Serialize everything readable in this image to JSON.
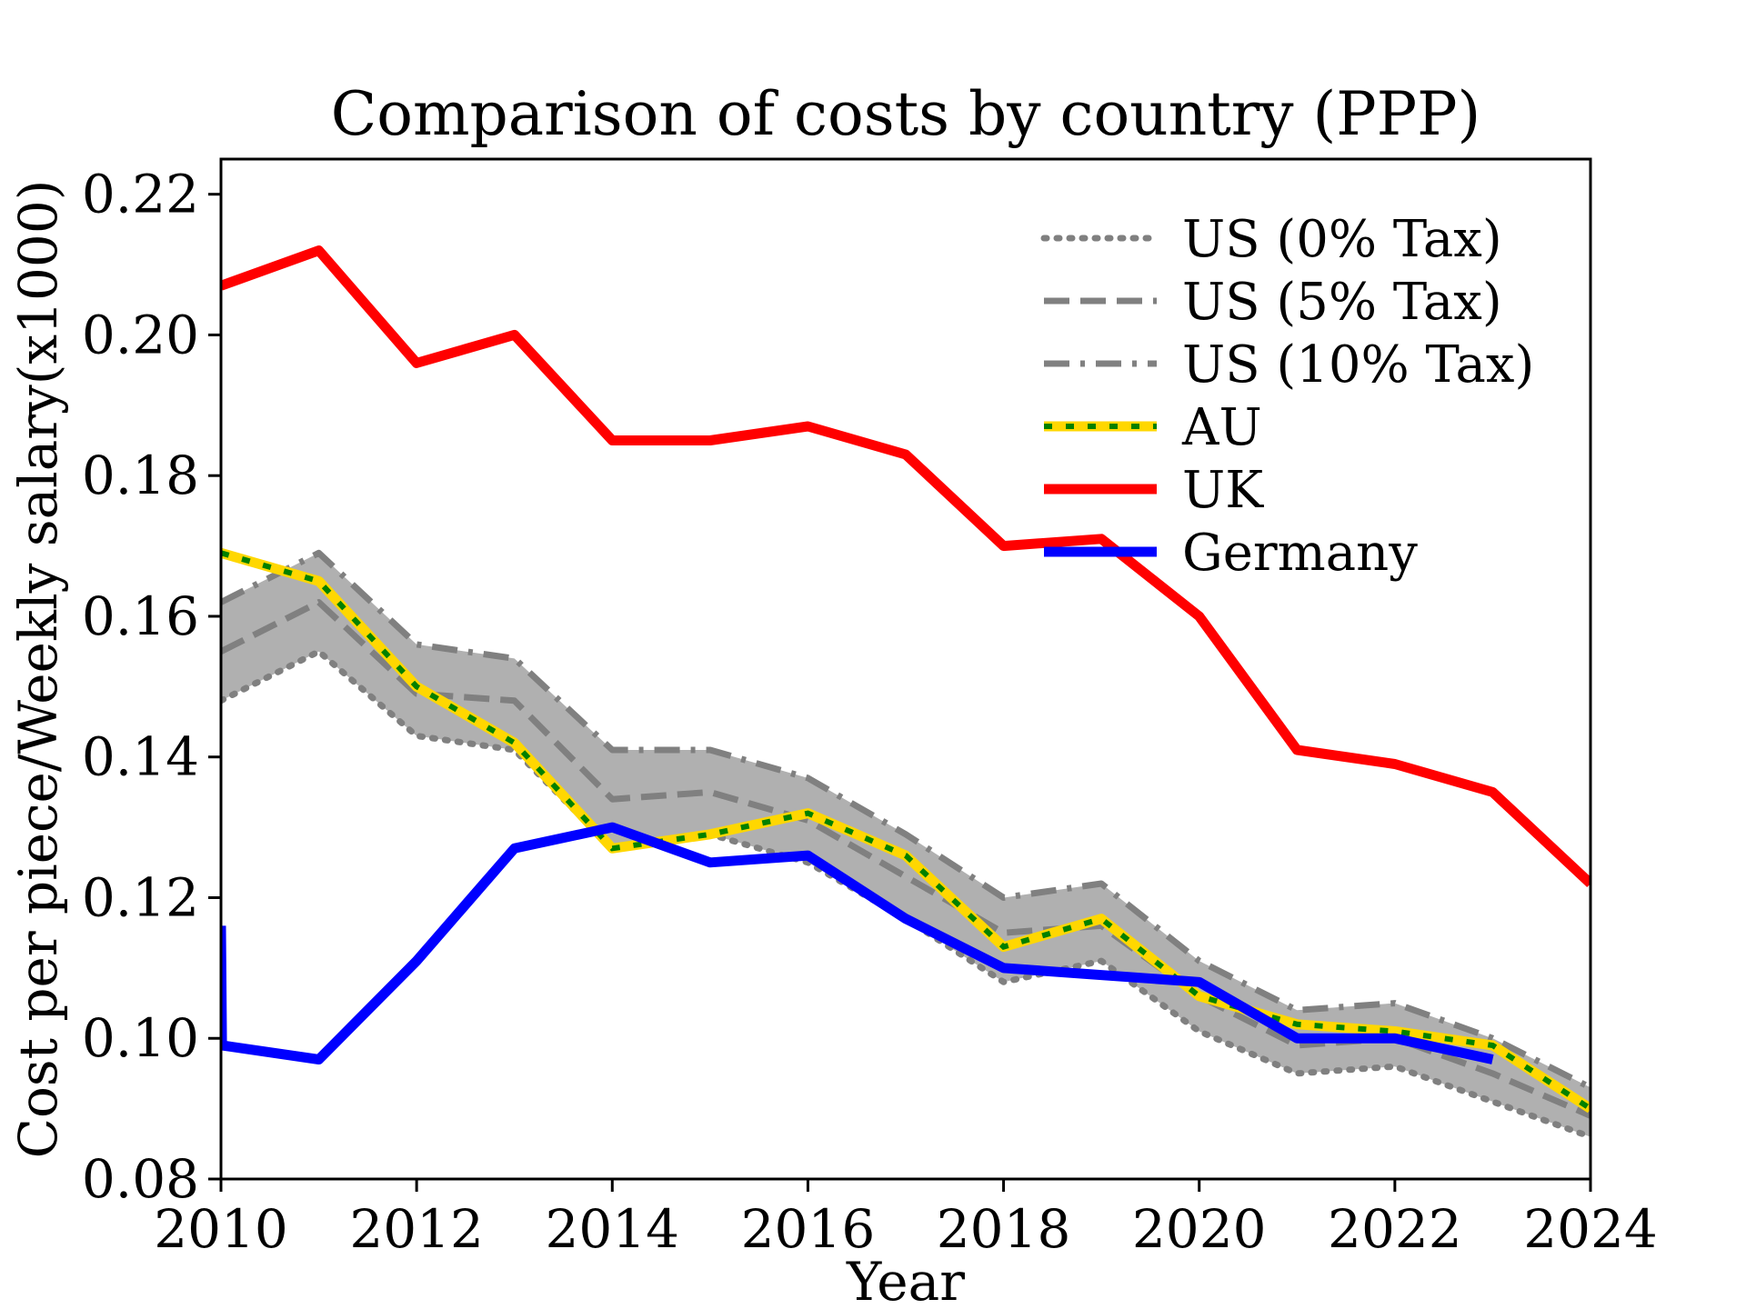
{
  "chart_data": {
    "type": "line",
    "title": "Comparison of costs by country (PPP)",
    "xlabel": "Year",
    "ylabel": "Cost per piece/Weekly salary(x1000)",
    "xlim": [
      2010,
      2024
    ],
    "ylim": [
      0.08,
      0.225
    ],
    "xticks": [
      2010,
      2012,
      2014,
      2016,
      2018,
      2020,
      2022,
      2024
    ],
    "xtick_labels": [
      "2010",
      "2012",
      "2014",
      "2016",
      "2018",
      "2020",
      "2022",
      "2024"
    ],
    "yticks": [
      0.08,
      0.1,
      0.12,
      0.14,
      0.16,
      0.18,
      0.2,
      0.22
    ],
    "ytick_labels": [
      "0.08",
      "0.10",
      "0.12",
      "0.14",
      "0.16",
      "0.18",
      "0.20",
      "0.22"
    ],
    "grid": false,
    "legend_position": "top-right",
    "x": [
      2010,
      2011,
      2012,
      2013,
      2014,
      2015,
      2016,
      2017,
      2018,
      2019,
      2020,
      2021,
      2022,
      2023,
      2024
    ],
    "band": {
      "between": [
        "US (0% Tax)",
        "US (10% Tax)"
      ],
      "color": "#b0b0b0"
    },
    "series": [
      {
        "name": "US (0% Tax)",
        "style": "dotted",
        "color": "#808080",
        "x": [
          2010,
          2011,
          2012,
          2013,
          2014,
          2015,
          2016,
          2017,
          2018,
          2019,
          2020,
          2021,
          2022,
          2023,
          2024
        ],
        "values": [
          0.148,
          0.155,
          0.143,
          0.141,
          0.127,
          0.129,
          0.125,
          0.117,
          0.108,
          0.111,
          0.101,
          0.095,
          0.096,
          0.091,
          0.086
        ]
      },
      {
        "name": "US (5% Tax)",
        "style": "dashed",
        "color": "#808080",
        "x": [
          2010,
          2011,
          2012,
          2013,
          2014,
          2015,
          2016,
          2017,
          2018,
          2019,
          2020,
          2021,
          2022,
          2023,
          2024
        ],
        "values": [
          0.155,
          0.162,
          0.149,
          0.148,
          0.134,
          0.135,
          0.131,
          0.123,
          0.115,
          0.116,
          0.106,
          0.099,
          0.1,
          0.095,
          0.089
        ]
      },
      {
        "name": "US (10% Tax)",
        "style": "dashdot",
        "color": "#808080",
        "x": [
          2010,
          2011,
          2012,
          2013,
          2014,
          2015,
          2016,
          2017,
          2018,
          2019,
          2020,
          2021,
          2022,
          2023,
          2024
        ],
        "values": [
          0.162,
          0.169,
          0.156,
          0.154,
          0.141,
          0.141,
          0.137,
          0.129,
          0.12,
          0.122,
          0.111,
          0.104,
          0.105,
          0.1,
          0.093
        ]
      },
      {
        "name": "AU",
        "style": "solid-dashed",
        "color": "#ffd700",
        "color2": "#008000",
        "x": [
          2010,
          2011,
          2012,
          2013,
          2014,
          2015,
          2016,
          2017,
          2018,
          2019,
          2020,
          2021,
          2022,
          2023,
          2024
        ],
        "values": [
          0.169,
          0.165,
          0.15,
          0.142,
          0.127,
          0.129,
          0.132,
          0.126,
          0.113,
          0.117,
          0.106,
          0.102,
          0.101,
          0.099,
          0.09
        ]
      },
      {
        "name": "UK",
        "style": "solid",
        "color": "#ff0000",
        "x": [
          2010,
          2011,
          2012,
          2013,
          2014,
          2015,
          2016,
          2017,
          2018,
          2019,
          2020,
          2021,
          2022,
          2023,
          2024
        ],
        "values": [
          0.207,
          0.212,
          0.196,
          0.2,
          0.185,
          0.185,
          0.187,
          0.183,
          0.17,
          0.171,
          0.16,
          0.141,
          0.139,
          0.135,
          0.122
        ]
      },
      {
        "name": "Germany",
        "style": "solid",
        "color": "#0000ff",
        "x": [
          2010,
          2010.01,
          2011,
          2012,
          2013,
          2014,
          2015,
          2016,
          2017,
          2018,
          2019,
          2020,
          2021,
          2022,
          2023
        ],
        "values": [
          0.116,
          0.099,
          0.097,
          0.111,
          0.127,
          0.13,
          0.125,
          0.126,
          0.117,
          0.11,
          0.109,
          0.108,
          0.1,
          0.1,
          0.097
        ]
      }
    ]
  }
}
